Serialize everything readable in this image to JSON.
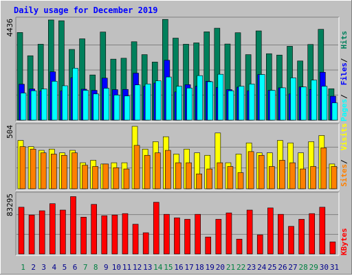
{
  "chart_data": {
    "type": "bar",
    "title": "Daily usage for December 2019",
    "categories": [
      "1",
      "2",
      "3",
      "4",
      "5",
      "6",
      "7",
      "8",
      "9",
      "10",
      "11",
      "12",
      "13",
      "14",
      "15",
      "16",
      "17",
      "18",
      "19",
      "20",
      "21",
      "22",
      "23",
      "24",
      "25",
      "26",
      "27",
      "28",
      "29",
      "30",
      "31"
    ],
    "weekend_days": [
      "1",
      "7",
      "8",
      "14",
      "15",
      "21",
      "22",
      "28",
      "29"
    ],
    "panels": [
      {
        "name": "top",
        "max_label": "4436",
        "ylim": [
          0,
          4436
        ],
        "series": [
          {
            "name": "Hits",
            "color": "#00805c",
            "values": [
              3880,
              2850,
              3360,
              4436,
              4400,
              3130,
              3600,
              2000,
              3900,
              2700,
              2740,
              3470,
              2900,
              2570,
              4460,
              3630,
              3360,
              3420,
              3910,
              4070,
              3370,
              3870,
              2900,
              3950,
              2940,
              2880,
              3270,
              2620,
              3350,
              4020,
              1390
            ]
          },
          {
            "name": "Files",
            "color": "#0000ff",
            "values": [
              1590,
              1380,
              1290,
              2140,
              1300,
              1880,
              1370,
              1320,
              1860,
              1350,
              1360,
              2080,
              1500,
              1640,
              2650,
              1250,
              1570,
              1500,
              1720,
              1450,
              1350,
              1460,
              1300,
              2020,
              1320,
              1430,
              1160,
              1470,
              1360,
              2120,
              1060
            ]
          },
          {
            "name": "Pages",
            "color": "#00ffff",
            "values": [
              1200,
              1300,
              1380,
              1720,
              1520,
              2300,
              1320,
              1160,
              1410,
              1110,
              1070,
              1560,
              1600,
              1740,
              1910,
              1500,
              1420,
              1970,
              1700,
              2030,
              1300,
              1500,
              1600,
              2020,
              1320,
              1430,
              1870,
              1470,
              1770,
              1500,
              765
            ]
          }
        ]
      },
      {
        "name": "middle",
        "max_label": "504",
        "ylim": [
          0,
          504
        ],
        "series": [
          {
            "name": "Visits",
            "color": "#ffff00",
            "values": [
              390,
              340,
              310,
              320,
              290,
              310,
              210,
              230,
              200,
              210,
              210,
              504,
              320,
              380,
              420,
              280,
              320,
              290,
              270,
              450,
              210,
              280,
              370,
              290,
              290,
              390,
              370,
              290,
              380,
              430,
              200
            ]
          },
          {
            "name": "Sites",
            "color": "#ff8000",
            "values": [
              340,
              320,
              290,
              280,
              270,
              290,
              190,
              180,
              200,
              170,
              160,
              350,
              270,
              290,
              310,
              210,
              210,
              120,
              160,
              210,
              180,
              130,
              300,
              270,
              180,
              230,
              210,
              160,
              180,
              330,
              180
            ]
          }
        ]
      },
      {
        "name": "bottom",
        "max_label": "83295",
        "ylim": [
          0,
          83295
        ],
        "series": [
          {
            "name": "KBytes",
            "color": "#ff0000",
            "values": [
              66000,
              55000,
              61000,
              71000,
              62000,
              81000,
              52000,
              70000,
              54000,
              55000,
              57000,
              42000,
              30000,
              73000,
              56000,
              51000,
              49000,
              56000,
              24000,
              49000,
              58000,
              21000,
              62000,
              27000,
              65000,
              56000,
              39000,
              49000,
              57000,
              66000,
              17000
            ]
          }
        ]
      }
    ],
    "legend": {
      "top": [
        {
          "text": "Pages",
          "color": "#00ffff"
        },
        {
          "text": "Files",
          "color": "#0000ff"
        },
        {
          "text": "Hits",
          "color": "#00805c"
        }
      ],
      "middle": [
        {
          "text": "Sites",
          "color": "#ff8000"
        },
        {
          "text": "Visits",
          "color": "#ffff00"
        }
      ],
      "bottom": [
        {
          "text": "KBytes",
          "color": "#ff0000"
        }
      ],
      "separator": " / ",
      "placement": "right, vertical"
    },
    "colors": {
      "background": "#c0c0c0",
      "title": "#0000ff",
      "weekday_label": "#00008b",
      "weekend_label": "#008040",
      "gridline": "#808080"
    },
    "grid": true
  }
}
